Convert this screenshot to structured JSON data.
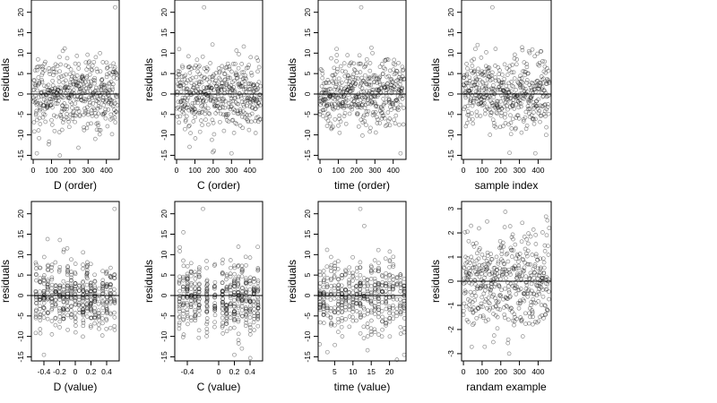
{
  "figure": {
    "marker_color": "#000000",
    "background": "#ffffff"
  },
  "chart_data": [
    {
      "type": "scatter",
      "xlabel": "D (order)",
      "ylabel": "residuals",
      "xticks": [
        0,
        100,
        200,
        300,
        400
      ],
      "xlim": [
        -10,
        470
      ],
      "yticks": [
        -15,
        -10,
        -5,
        0,
        5,
        10,
        15,
        20
      ],
      "ylim": [
        -16,
        23
      ],
      "hline": 0,
      "kind": "order",
      "n": 460,
      "sd": 4.3,
      "outliers": [
        [
          448,
          21.2
        ],
        [
          20,
          -14.5
        ]
      ]
    },
    {
      "type": "scatter",
      "xlabel": "C (order)",
      "ylabel": "residuals",
      "xticks": [
        0,
        100,
        200,
        300,
        400
      ],
      "xlim": [
        -10,
        470
      ],
      "yticks": [
        -15,
        -10,
        -5,
        0,
        5,
        10,
        15,
        20
      ],
      "ylim": [
        -16,
        23
      ],
      "hline": 0,
      "kind": "order",
      "n": 460,
      "sd": 4.3,
      "outliers": [
        [
          150,
          21.2
        ],
        [
          300,
          -14.5
        ]
      ]
    },
    {
      "type": "scatter",
      "xlabel": "time (order)",
      "ylabel": "residuals",
      "xticks": [
        0,
        100,
        200,
        300,
        400
      ],
      "xlim": [
        -10,
        470
      ],
      "yticks": [
        -15,
        -10,
        -5,
        0,
        5,
        10,
        15,
        20
      ],
      "ylim": [
        -16,
        23
      ],
      "hline": 0,
      "kind": "order",
      "n": 460,
      "sd": 4.3,
      "outliers": [
        [
          225,
          21.2
        ],
        [
          440,
          -14.5
        ]
      ]
    },
    {
      "type": "scatter",
      "xlabel": "sample index",
      "ylabel": "residuals",
      "xticks": [
        0,
        100,
        200,
        300,
        400
      ],
      "xlim": [
        -10,
        470
      ],
      "yticks": [
        -15,
        -10,
        -5,
        0,
        5,
        10,
        15,
        20
      ],
      "ylim": [
        -16,
        23
      ],
      "hline": 0,
      "kind": "order",
      "n": 460,
      "sd": 4.3,
      "outliers": [
        [
          155,
          21.2
        ],
        [
          385,
          -14.5
        ]
      ]
    },
    {
      "type": "scatter",
      "xlabel": "D (value)",
      "ylabel": "residuals",
      "xticks": [
        -0.4,
        -0.2,
        0.0,
        0.2,
        0.4
      ],
      "xlim": [
        -0.56,
        0.56
      ],
      "yticks": [
        -15,
        -10,
        -5,
        0,
        5,
        10,
        15,
        20
      ],
      "ylim": [
        -16,
        23
      ],
      "hline": 0,
      "kind": "value",
      "n": 460,
      "sd": 4.3,
      "columns": [
        -0.5,
        -0.45,
        -0.4,
        -0.35,
        -0.3,
        -0.25,
        -0.2,
        -0.15,
        -0.1,
        -0.05,
        0.0,
        0.05,
        0.1,
        0.15,
        0.2,
        0.25,
        0.3,
        0.35,
        0.4,
        0.45,
        0.5
      ],
      "outliers": [
        [
          0.5,
          21.2
        ],
        [
          -0.4,
          -14.5
        ]
      ]
    },
    {
      "type": "scatter",
      "xlabel": "C (value)",
      "ylabel": "residuals",
      "xticks": [
        -0.4,
        0.0,
        0.2,
        0.4
      ],
      "xlim": [
        -0.56,
        0.56
      ],
      "yticks": [
        -15,
        -10,
        -5,
        0,
        5,
        10,
        15,
        20
      ],
      "ylim": [
        -16,
        23
      ],
      "hline": 0,
      "kind": "value",
      "n": 460,
      "sd": 4.3,
      "columns": [
        -0.5,
        -0.45,
        -0.4,
        -0.35,
        -0.3,
        -0.25,
        -0.15,
        -0.05,
        0.05,
        0.1,
        0.15,
        0.2,
        0.25,
        0.3,
        0.35,
        0.4,
        0.45,
        0.5
      ],
      "outliers": [
        [
          -0.2,
          21.2
        ],
        [
          0.2,
          -14.5
        ]
      ]
    },
    {
      "type": "scatter",
      "xlabel": "time (value)",
      "ylabel": "residuals",
      "xticks": [
        5,
        10,
        15,
        20
      ],
      "xlim": [
        0.5,
        24.5
      ],
      "yticks": [
        -15,
        -10,
        -5,
        0,
        5,
        10,
        15,
        20
      ],
      "ylim": [
        -16,
        23
      ],
      "hline": 0,
      "kind": "value",
      "n": 460,
      "sd": 4.3,
      "columns": [
        1,
        2,
        3,
        4,
        5,
        6,
        7,
        8,
        9,
        10,
        11,
        12,
        13,
        14,
        15,
        16,
        17,
        18,
        19,
        20,
        21,
        22,
        23,
        24
      ],
      "outliers": [
        [
          12,
          21.2
        ],
        [
          24,
          -14.5
        ]
      ]
    },
    {
      "type": "scatter",
      "xlabel": "randam example",
      "ylabel": "residuals",
      "xticks": [
        0,
        100,
        200,
        300,
        400
      ],
      "xlim": [
        -10,
        470
      ],
      "yticks": [
        -3,
        -2,
        -1,
        0,
        1,
        2,
        3
      ],
      "ylim": [
        -3.3,
        3.3
      ],
      "hline": 0,
      "kind": "order",
      "n": 460,
      "sd": 1.0,
      "outliers": []
    }
  ]
}
